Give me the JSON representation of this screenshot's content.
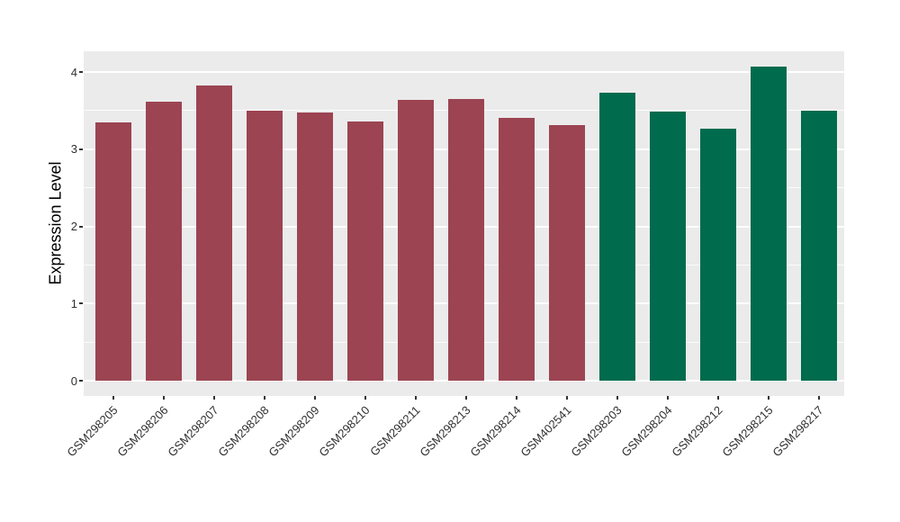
{
  "chart_data": {
    "type": "bar",
    "title": "",
    "xlabel": "",
    "ylabel": "Expression Level",
    "ylim": [
      0,
      4.27
    ],
    "yticks": [
      0,
      1,
      2,
      3,
      4
    ],
    "yticks_minor": [
      0.5,
      1.5,
      2.5,
      3.5
    ],
    "grid": "on",
    "legend_position": "none",
    "categories": [
      "GSM298205",
      "GSM298206",
      "GSM298207",
      "GSM298208",
      "GSM298209",
      "GSM298210",
      "GSM298211",
      "GSM298213",
      "GSM298214",
      "GSM402541",
      "GSM298203",
      "GSM298204",
      "GSM298212",
      "GSM298215",
      "GSM298217"
    ],
    "values": [
      3.35,
      3.62,
      3.82,
      3.5,
      3.47,
      3.36,
      3.64,
      3.65,
      3.4,
      3.31,
      3.73,
      3.49,
      3.26,
      4.07,
      3.5
    ],
    "bar_colors": [
      "#9C4452",
      "#9C4452",
      "#9C4452",
      "#9C4452",
      "#9C4452",
      "#9C4452",
      "#9C4452",
      "#9C4452",
      "#9C4452",
      "#9C4452",
      "#006B4D",
      "#006B4D",
      "#006B4D",
      "#006B4D",
      "#006B4D"
    ],
    "group_palette": {
      "group_1_red": "#9C4452",
      "group_2_green": "#006B4D"
    },
    "panel_background": "#EBEBEB",
    "gridline_color": "#FFFFFF"
  }
}
